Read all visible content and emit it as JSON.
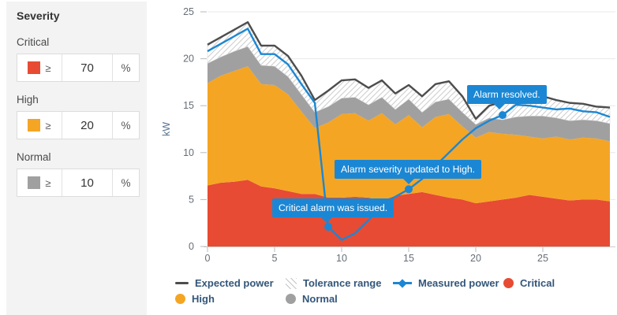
{
  "sidebar": {
    "title": "Severity",
    "levels": [
      {
        "name": "Critical",
        "color": "#e74b33",
        "operator": "≥",
        "value": "70",
        "unit": "%"
      },
      {
        "name": "High",
        "color": "#f5a524",
        "operator": "≥",
        "value": "20",
        "unit": "%"
      },
      {
        "name": "Normal",
        "color": "#a0a0a0",
        "operator": "≥",
        "value": "10",
        "unit": "%"
      }
    ]
  },
  "chart_data": {
    "type": "area",
    "title": "",
    "xlabel": "",
    "ylabel": "kW",
    "ylim": [
      0,
      25
    ],
    "xlim": [
      0,
      30
    ],
    "y_ticks": [
      0,
      5,
      10,
      15,
      20,
      25
    ],
    "x_ticks": [
      0,
      5,
      10,
      15,
      20,
      25
    ],
    "grid": true,
    "legend_position": "bottom",
    "x": [
      0,
      1,
      2,
      3,
      4,
      5,
      6,
      7,
      8,
      9,
      10,
      11,
      12,
      13,
      14,
      15,
      16,
      17,
      18,
      19,
      20,
      21,
      22,
      23,
      24,
      25,
      26,
      27,
      28,
      29,
      30
    ],
    "series": [
      {
        "name": "Critical",
        "kind": "stacked-area-top",
        "color": "#e74b33",
        "values": [
          6.5,
          6.8,
          6.9,
          7.1,
          6.4,
          6.2,
          5.9,
          5.6,
          5.6,
          5.2,
          5.2,
          5.3,
          5.2,
          4.9,
          5.4,
          5.6,
          5.8,
          5.5,
          5.2,
          5.0,
          4.6,
          4.8,
          5.0,
          5.2,
          5.5,
          5.3,
          5.1,
          4.9,
          5.0,
          5.0,
          4.8
        ]
      },
      {
        "name": "High",
        "kind": "stacked-area-top",
        "color": "#f5a524",
        "values": [
          17.4,
          18.2,
          18.7,
          19.2,
          17.3,
          17.2,
          16.2,
          14.4,
          12.6,
          13.2,
          14.1,
          14.2,
          13.4,
          14.2,
          13.0,
          14.0,
          12.7,
          13.8,
          14.1,
          12.8,
          11.6,
          12.2,
          12.0,
          11.9,
          11.7,
          11.5,
          11.7,
          11.4,
          11.6,
          11.5,
          11.2
        ]
      },
      {
        "name": "Normal",
        "kind": "stacked-area-top",
        "color": "#a0a0a0",
        "values": [
          19.5,
          20.2,
          20.8,
          21.3,
          19.3,
          19.2,
          18.1,
          16.2,
          14.3,
          14.9,
          15.8,
          15.9,
          15.1,
          15.9,
          14.6,
          15.7,
          14.3,
          15.4,
          15.7,
          14.3,
          13.0,
          13.7,
          13.5,
          13.8,
          13.9,
          13.9,
          13.7,
          13.4,
          13.5,
          13.4,
          13.1
        ]
      },
      {
        "name": "Expected power",
        "kind": "line",
        "color": "#4d4d4d",
        "values": [
          21.5,
          22.3,
          23.1,
          23.9,
          21.4,
          21.4,
          20.3,
          18.2,
          15.6,
          16.6,
          17.7,
          17.8,
          16.9,
          17.7,
          16.3,
          17.2,
          16.0,
          17.3,
          17.6,
          16.0,
          13.6,
          15.0,
          15.4,
          15.5,
          15.8,
          16.0,
          15.6,
          15.3,
          15.2,
          14.9,
          14.8
        ]
      },
      {
        "name": "Measured power",
        "kind": "line",
        "color": "#1b87d4",
        "values": [
          20.8,
          21.6,
          22.4,
          23.2,
          20.5,
          20.5,
          19.4,
          17.3,
          15.3,
          2.1,
          0.7,
          1.4,
          2.8,
          4.4,
          5.3,
          6.1,
          7.2,
          8.6,
          10.0,
          11.4,
          12.6,
          13.4,
          14.0,
          15.1,
          15.0,
          14.8,
          14.6,
          14.7,
          14.4,
          14.3,
          13.8
        ]
      }
    ],
    "tolerance_range": {
      "between": [
        "Normal",
        "Expected power"
      ],
      "hatch_color": "#cfcfcf"
    },
    "annotations": [
      {
        "x": 9,
        "y": 2.1,
        "label": "Critical alarm was issued."
      },
      {
        "x": 15,
        "y": 6.1,
        "label": "Alarm severity updated to High."
      },
      {
        "x": 22,
        "y": 14.0,
        "label": "Alarm resolved."
      }
    ],
    "legend": [
      {
        "label": "Expected power"
      },
      {
        "label": "Tolerance range"
      },
      {
        "label": "Measured power"
      },
      {
        "label": "Critical"
      },
      {
        "label": "High"
      },
      {
        "label": "Normal"
      }
    ],
    "colors": {
      "accent": "#1b87d4",
      "grid": "#e8e8e8",
      "axis": "#cccccc",
      "tick_label": "#666e76",
      "ylabel": "#55718f"
    }
  }
}
